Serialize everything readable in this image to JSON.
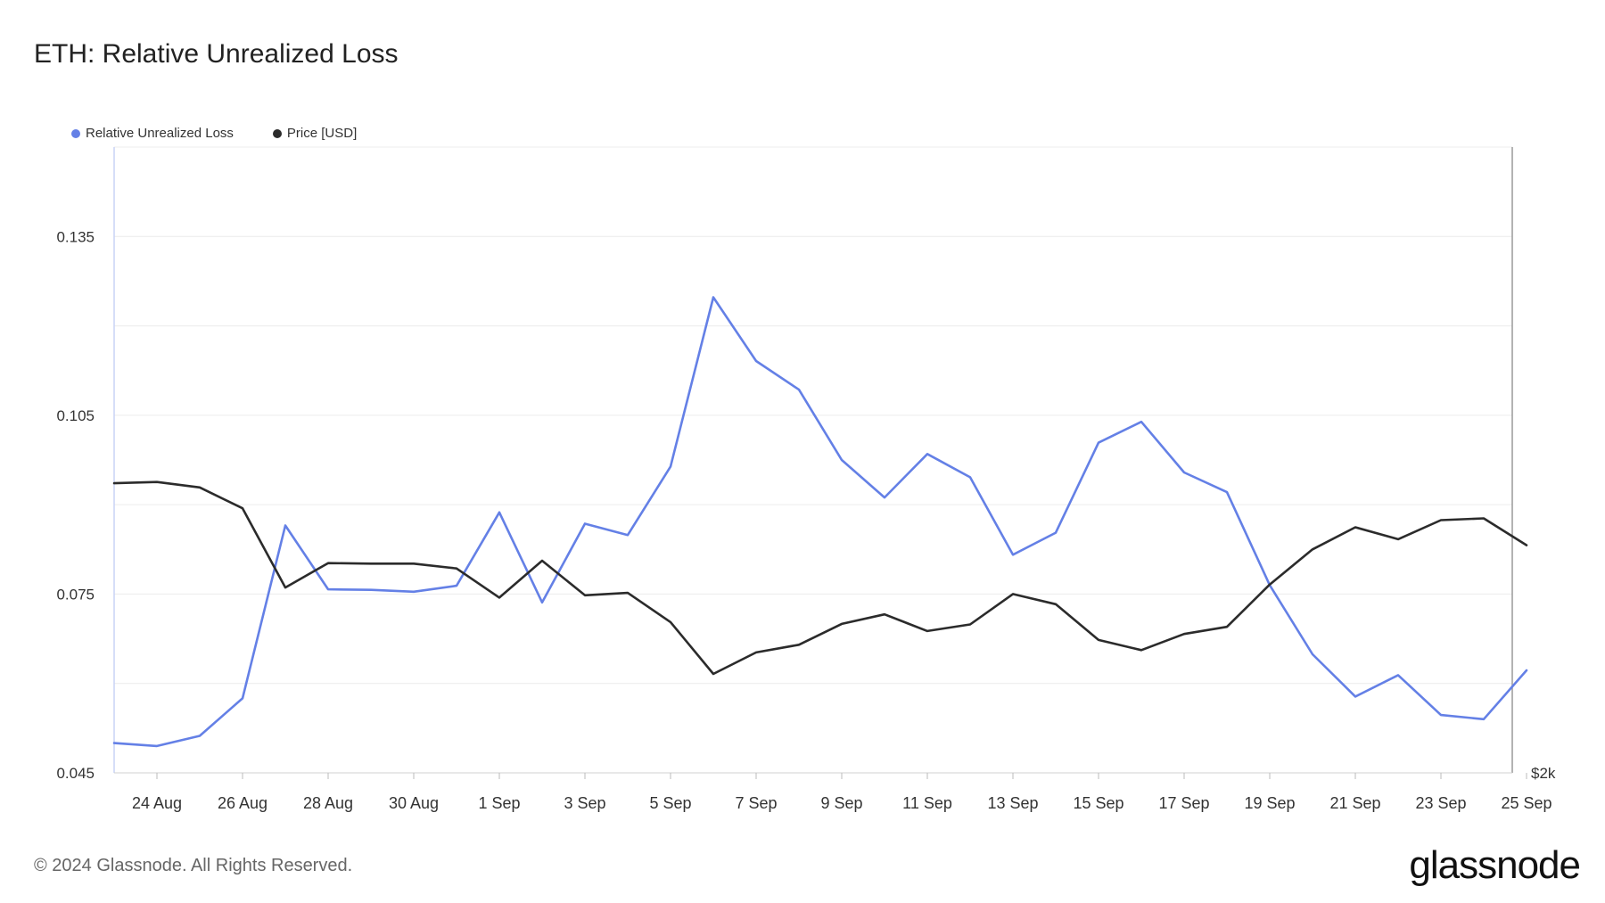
{
  "title": "ETH: Relative Unrealized Loss",
  "footer": "© 2024 Glassnode. All Rights Reserved.",
  "logo_text": "glassnode",
  "colors": {
    "rul": "#6480e6",
    "price": "#2b2b2b",
    "grid": "#ececec",
    "axis": "#d0d0d0"
  },
  "chart_data": {
    "type": "line",
    "title": "ETH: Relative Unrealized Loss",
    "legend": {
      "placement": "top-left"
    },
    "grid": true,
    "x": [
      "23 Aug",
      "24 Aug",
      "25 Aug",
      "26 Aug",
      "27 Aug",
      "28 Aug",
      "29 Aug",
      "30 Aug",
      "31 Aug",
      "1 Sep",
      "2 Sep",
      "3 Sep",
      "4 Sep",
      "5 Sep",
      "6 Sep",
      "7 Sep",
      "8 Sep",
      "9 Sep",
      "10 Sep",
      "11 Sep",
      "12 Sep",
      "13 Sep",
      "14 Sep",
      "15 Sep",
      "16 Sep",
      "17 Sep",
      "18 Sep",
      "19 Sep",
      "20 Sep",
      "21 Sep",
      "22 Sep",
      "23 Sep",
      "24 Sep",
      "25 Sep"
    ],
    "x_tick_labels": [
      "24 Aug",
      "26 Aug",
      "28 Aug",
      "30 Aug",
      "1 Sep",
      "3 Sep",
      "5 Sep",
      "7 Sep",
      "9 Sep",
      "11 Sep",
      "13 Sep",
      "15 Sep",
      "17 Sep",
      "19 Sep",
      "21 Sep",
      "23 Sep",
      "25 Sep"
    ],
    "y_left": {
      "ticks": [
        "0.135",
        "0.105",
        "0.075",
        "0.045"
      ],
      "range": [
        0.045,
        0.15
      ],
      "minor_ticks": [
        0.06,
        0.09,
        0.12
      ]
    },
    "y_right": {
      "ticks": [
        "$2k"
      ]
    },
    "series": [
      {
        "name": "Relative Unrealized Loss",
        "axis": "left",
        "values": [
          0.05,
          0.0495,
          0.0512,
          0.0575,
          0.0865,
          0.0758,
          0.0757,
          0.0754,
          0.0764,
          0.0887,
          0.0736,
          0.0868,
          0.0849,
          0.0964,
          0.1248,
          0.1141,
          0.1093,
          0.0975,
          0.0912,
          0.0985,
          0.0946,
          0.0816,
          0.0853,
          0.1004,
          0.1039,
          0.0954,
          0.0921,
          0.0765,
          0.0649,
          0.0578,
          0.0614,
          0.0547,
          0.054,
          0.0622
        ]
      },
      {
        "name": "Price [USD]",
        "axis": "right",
        "values": [
          0.0936,
          0.0938,
          0.0929,
          0.0894,
          0.0761,
          0.0802,
          0.0801,
          0.0801,
          0.0793,
          0.0744,
          0.0806,
          0.0748,
          0.0752,
          0.0703,
          0.0616,
          0.0652,
          0.0665,
          0.07,
          0.0716,
          0.0688,
          0.0699,
          0.075,
          0.0733,
          0.0673,
          0.0656,
          0.0683,
          0.0695,
          0.0766,
          0.0825,
          0.0862,
          0.0842,
          0.0874,
          0.0877,
          0.0832
        ]
      }
    ]
  }
}
